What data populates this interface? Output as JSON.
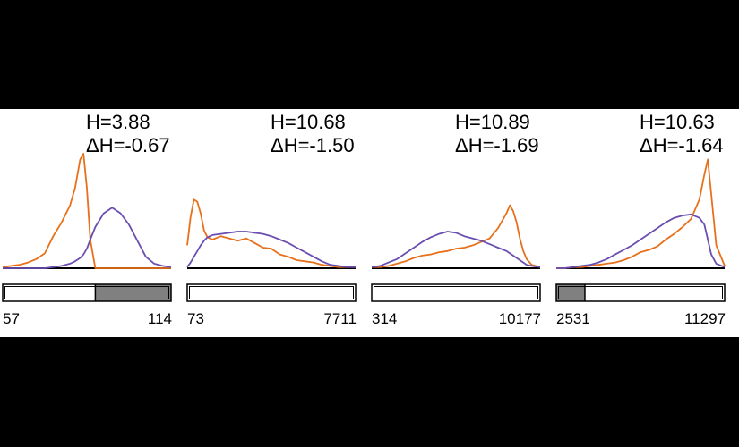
{
  "colors": {
    "background": "#000000",
    "panel": "#ffffff",
    "series_a": "#e8701a",
    "series_b": "#6a4fb0",
    "fill": "#808080",
    "axis": "#000000"
  },
  "chart_data": [
    {
      "type": "line",
      "annotation": {
        "h": "H=3.88",
        "dh": "ΔH=-0.67"
      },
      "range_labels": {
        "min": "57",
        "max": "114"
      },
      "range_fill": [
        0.55,
        1.0
      ],
      "x": [
        0,
        0.05,
        0.1,
        0.15,
        0.2,
        0.25,
        0.3,
        0.35,
        0.4,
        0.43,
        0.46,
        0.48,
        0.5,
        0.52,
        0.55,
        0.6,
        0.65,
        0.7,
        0.75,
        0.8,
        0.85,
        0.9,
        0.95,
        1.0
      ],
      "series": [
        {
          "values": [
            0.01,
            0.02,
            0.03,
            0.05,
            0.08,
            0.13,
            0.28,
            0.4,
            0.55,
            0.7,
            0.95,
            1.0,
            0.7,
            0.25,
            0.0,
            0,
            0,
            0,
            0,
            0,
            0,
            0,
            0,
            0
          ]
        },
        {
          "values": [
            0,
            0,
            0,
            0,
            0,
            0,
            0.01,
            0.02,
            0.04,
            0.06,
            0.09,
            0.12,
            0.17,
            0.25,
            0.36,
            0.48,
            0.53,
            0.48,
            0.38,
            0.24,
            0.1,
            0.04,
            0.02,
            0.01
          ]
        }
      ]
    },
    {
      "type": "line",
      "annotation": {
        "h": "H=10.68",
        "dh": "ΔH=-1.50"
      },
      "range_labels": {
        "min": "73",
        "max": "7711"
      },
      "range_fill": [
        0,
        0
      ],
      "x": [
        0,
        0.02,
        0.04,
        0.06,
        0.08,
        0.1,
        0.12,
        0.15,
        0.2,
        0.25,
        0.3,
        0.35,
        0.4,
        0.45,
        0.5,
        0.55,
        0.6,
        0.65,
        0.7,
        0.75,
        0.8,
        0.85,
        0.9,
        0.95,
        1.0
      ],
      "series": [
        {
          "values": [
            0.2,
            0.45,
            0.6,
            0.58,
            0.48,
            0.33,
            0.27,
            0.25,
            0.28,
            0.26,
            0.24,
            0.26,
            0.22,
            0.18,
            0.17,
            0.12,
            0.1,
            0.07,
            0.06,
            0.05,
            0.03,
            0.02,
            0.01,
            0.01,
            0.01
          ]
        },
        {
          "values": [
            0.01,
            0.05,
            0.1,
            0.15,
            0.2,
            0.24,
            0.27,
            0.29,
            0.3,
            0.31,
            0.32,
            0.32,
            0.31,
            0.3,
            0.28,
            0.25,
            0.22,
            0.18,
            0.14,
            0.1,
            0.06,
            0.03,
            0.02,
            0.01,
            0.01
          ]
        }
      ]
    },
    {
      "type": "line",
      "annotation": {
        "h": "H=10.89",
        "dh": "ΔH=-1.69"
      },
      "range_labels": {
        "min": "314",
        "max": "10177"
      },
      "range_fill": [
        0,
        0
      ],
      "x": [
        0,
        0.05,
        0.1,
        0.15,
        0.2,
        0.25,
        0.3,
        0.35,
        0.4,
        0.45,
        0.5,
        0.55,
        0.6,
        0.65,
        0.7,
        0.75,
        0.8,
        0.82,
        0.84,
        0.86,
        0.88,
        0.9,
        0.92,
        0.95,
        1.0
      ],
      "series": [
        {
          "values": [
            0.01,
            0.01,
            0.02,
            0.04,
            0.06,
            0.09,
            0.11,
            0.12,
            0.14,
            0.15,
            0.17,
            0.18,
            0.2,
            0.23,
            0.26,
            0.35,
            0.48,
            0.55,
            0.5,
            0.4,
            0.26,
            0.15,
            0.08,
            0.03,
            0.01
          ]
        },
        {
          "values": [
            0.01,
            0.02,
            0.05,
            0.08,
            0.13,
            0.18,
            0.23,
            0.27,
            0.3,
            0.32,
            0.31,
            0.28,
            0.26,
            0.24,
            0.21,
            0.18,
            0.15,
            0.13,
            0.11,
            0.09,
            0.07,
            0.05,
            0.03,
            0.02,
            0.01
          ]
        }
      ]
    },
    {
      "type": "line",
      "annotation": {
        "h": "H=10.63",
        "dh": "ΔH=-1.64"
      },
      "range_labels": {
        "min": "2531",
        "max": "11297"
      },
      "range_fill": [
        0,
        0.17
      ],
      "x": [
        0,
        0.05,
        0.1,
        0.15,
        0.2,
        0.25,
        0.3,
        0.35,
        0.4,
        0.45,
        0.5,
        0.55,
        0.6,
        0.65,
        0.7,
        0.75,
        0.8,
        0.85,
        0.88,
        0.9,
        0.92,
        0.95,
        1.0
      ],
      "series": [
        {
          "values": [
            0,
            0,
            0.01,
            0.01,
            0.02,
            0.03,
            0.04,
            0.05,
            0.07,
            0.1,
            0.14,
            0.16,
            0.19,
            0.25,
            0.3,
            0.36,
            0.43,
            0.6,
            0.82,
            0.95,
            0.65,
            0.2,
            0.02
          ]
        },
        {
          "values": [
            0,
            0,
            0.01,
            0.02,
            0.03,
            0.05,
            0.08,
            0.12,
            0.16,
            0.2,
            0.25,
            0.3,
            0.35,
            0.4,
            0.44,
            0.46,
            0.47,
            0.44,
            0.38,
            0.25,
            0.12,
            0.04,
            0.01
          ]
        }
      ]
    }
  ]
}
